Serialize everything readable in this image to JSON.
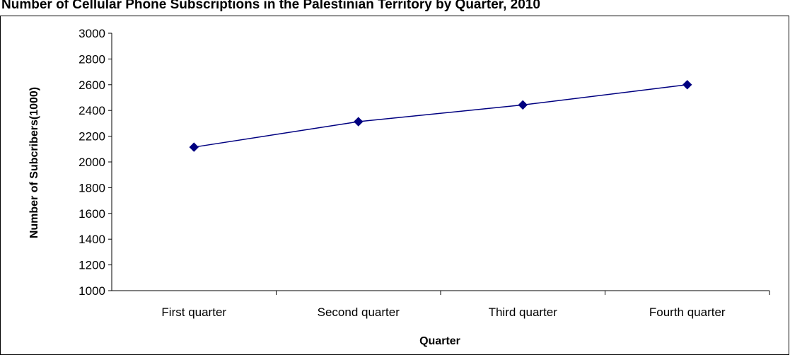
{
  "chart_data": {
    "type": "line",
    "title": "Number of Cellular Phone Subscriptions in the Palestinian Territory by Quarter, 2010",
    "xlabel": "Quarter",
    "ylabel": "Number of Subcribers(1000)",
    "categories": [
      "First quarter",
      "Second quarter",
      "Third quarter",
      "Fourth quarter"
    ],
    "series": [
      {
        "values": [
          2115,
          2313,
          2443,
          2600
        ]
      }
    ],
    "ylim": [
      1000,
      3000
    ],
    "yticks": [
      1000,
      1200,
      1400,
      1600,
      1800,
      2000,
      2200,
      2400,
      2600,
      2800,
      3000
    ],
    "grid": false,
    "legend": "none",
    "marker": "diamond",
    "colors": {
      "series": "#000080",
      "axis": "#000000",
      "frame": "#000000",
      "background": "#ffffff"
    }
  }
}
